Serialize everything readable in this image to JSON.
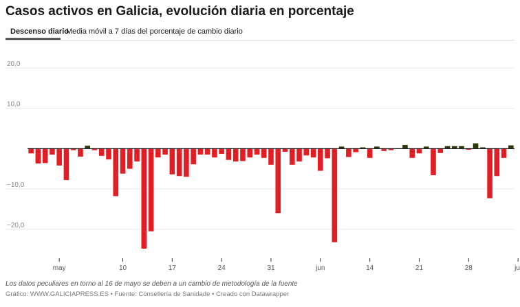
{
  "title": "Casos activos en Galicia, evolución diaria en porcentaje",
  "tabs": [
    {
      "label": "Descenso diario",
      "active": true
    },
    {
      "label": "Media móvil a 7 días del porcentaje de cambio diario",
      "active": false
    }
  ],
  "footnote": "Los datos peculiares en torno al 16 de mayo se deben a un cambio de metodología de la fuente",
  "credit": "Gráfico: WWW.GALICIAPRESS.ES • Fuente: Consellería de Sanidade • Creado con Datawrapper",
  "colors": {
    "negative": "#e21d23",
    "positive": "#2d3a0a",
    "grid": "#e6e6e6",
    "zero": "#000000"
  },
  "chart_data": {
    "type": "bar",
    "title": "Casos activos en Galicia, evolución diaria en porcentaje",
    "xlabel": "",
    "ylabel": "",
    "ylim": [
      -26.5,
      21.5
    ],
    "yticks": [
      20,
      10,
      -10,
      -20
    ],
    "ytick_labels": [
      "20,0",
      "10,0",
      "−10,0",
      "−20,0"
    ],
    "xtick_labels": [
      {
        "label": "may",
        "index": 4
      },
      {
        "label": "10",
        "index": 13
      },
      {
        "label": "17",
        "index": 20
      },
      {
        "label": "24",
        "index": 27
      },
      {
        "label": "31",
        "index": 34
      },
      {
        "label": "jun",
        "index": 41
      },
      {
        "label": "14",
        "index": 48
      },
      {
        "label": "21",
        "index": 55
      },
      {
        "label": "28",
        "index": 62
      },
      {
        "label": "jul",
        "index": 69
      }
    ],
    "values": [
      -1.2,
      -3.7,
      -3.6,
      -1.5,
      -4.2,
      -7.8,
      -0.4,
      -2.0,
      0.7,
      -0.4,
      -1.8,
      -2.7,
      -11.8,
      -6.2,
      -5.0,
      -3.2,
      -24.8,
      -20.5,
      -2.2,
      -1.5,
      -6.4,
      -6.8,
      -7.0,
      -3.9,
      -1.5,
      -1.5,
      -2.2,
      -1.3,
      -2.8,
      -3.2,
      -3.1,
      -2.2,
      -1.5,
      -2.3,
      -4.0,
      -16.0,
      -0.8,
      -4.0,
      -3.2,
      -1.7,
      -2.2,
      -5.5,
      -2.4,
      -23.2,
      0.5,
      -2.1,
      -0.9,
      0.3,
      -2.3,
      0.5,
      -0.6,
      -0.4,
      0.0,
      0.9,
      -2.3,
      -1.2,
      0.5,
      -6.6,
      -1.1,
      0.6,
      0.6,
      0.6,
      -0.3,
      1.3,
      0.3,
      -12.3,
      -6.8,
      -2.3,
      0.8
    ]
  }
}
